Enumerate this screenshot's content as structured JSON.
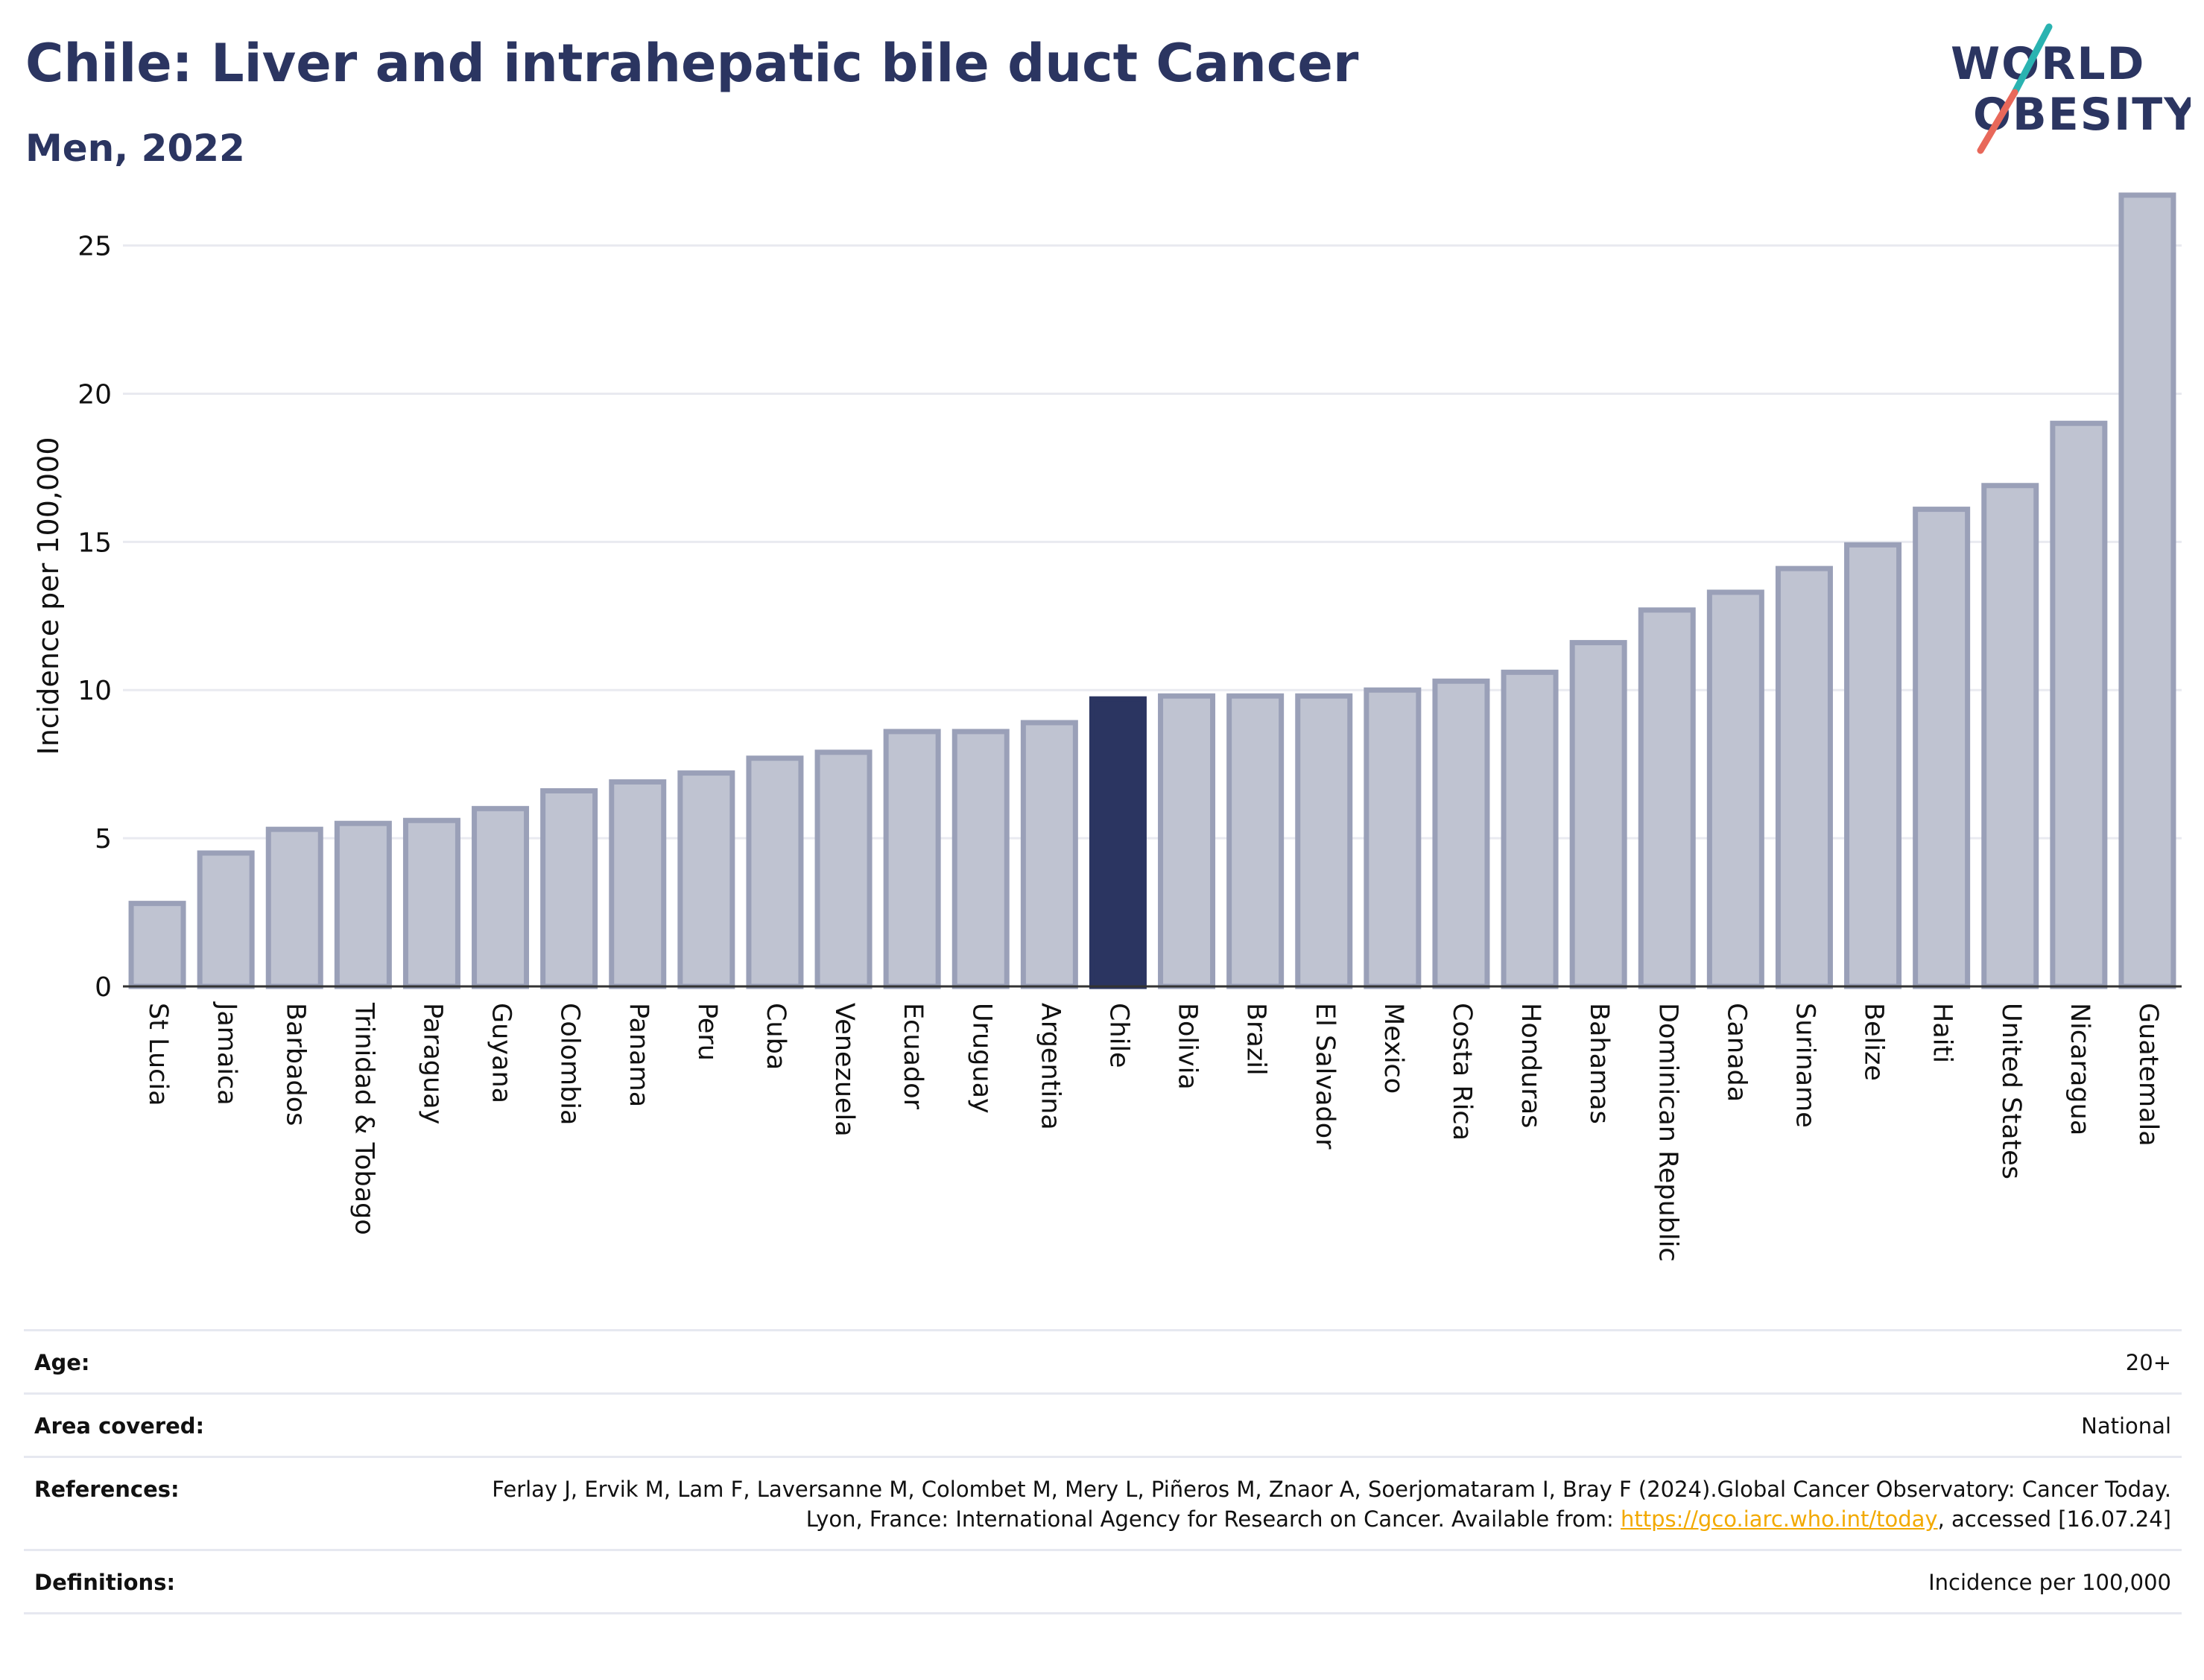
{
  "title": "Chile: Liver and intrahepatic bile duct Cancer",
  "subtitle": "Men, 2022",
  "logo": {
    "line1": "WORLD",
    "line2": "OBESITY",
    "colors": {
      "text": "#2b3561",
      "slash_top": "#2ab3b1",
      "slash_bottom": "#e8685a"
    }
  },
  "colors": {
    "bar": "#bfc3d1",
    "bar_stroke": "#9aa0b8",
    "highlight": "#2b3561",
    "grid": "#e9eaf0",
    "axis": "#333333",
    "link": "#f2a900"
  },
  "chart_data": {
    "type": "bar",
    "title": "",
    "xlabel": "",
    "ylabel": "Incidence per 100,000",
    "ylim": [
      0,
      27
    ],
    "yticks": [
      0,
      5,
      10,
      15,
      20,
      25
    ],
    "grid": true,
    "highlight": "Chile",
    "categories": [
      "St Lucia",
      "Jamaica",
      "Barbados",
      "Trinidad & Tobago",
      "Paraguay",
      "Guyana",
      "Colombia",
      "Panama",
      "Peru",
      "Cuba",
      "Venezuela",
      "Ecuador",
      "Uruguay",
      "Argentina",
      "Chile",
      "Bolivia",
      "Brazil",
      "El Salvador",
      "Mexico",
      "Costa Rica",
      "Honduras",
      "Bahamas",
      "Dominican Republic",
      "Canada",
      "Suriname",
      "Belize",
      "Haiti",
      "United States",
      "Nicaragua",
      "Guatemala"
    ],
    "values": [
      2.8,
      4.5,
      5.3,
      5.5,
      5.6,
      6.0,
      6.6,
      6.9,
      7.2,
      7.7,
      7.9,
      8.6,
      8.6,
      8.9,
      9.7,
      9.8,
      9.8,
      9.8,
      10.0,
      10.3,
      10.6,
      11.6,
      12.7,
      13.3,
      14.1,
      14.9,
      16.1,
      16.9,
      19.0,
      26.7
    ]
  },
  "info": {
    "age_label": "Age:",
    "age_value": "20+",
    "area_label": "Area covered:",
    "area_value": "National",
    "references_label": "References:",
    "references_text": "Ferlay J, Ervik M, Lam F, Laversanne M, Colombet M, Mery L, Piñeros M, Znaor A, Soerjomataram I, Bray F (2024).Global Cancer Observatory: Cancer Today. Lyon, France: International Agency for Research on Cancer. Available from: ",
    "references_link": "https://gco.iarc.who.int/today",
    "references_tail": ", accessed [16.07.24]",
    "definitions_label": "Definitions:",
    "definitions_value": "Incidence per 100,000"
  }
}
